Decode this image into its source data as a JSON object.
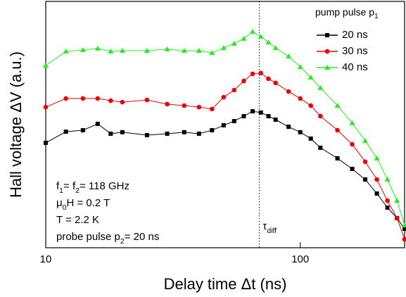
{
  "chart_data": {
    "type": "line",
    "xlabel": "Delay time Δt (ns)",
    "ylabel": "Hall voltage ΔV (a.u.)",
    "xscale": "log",
    "xlim": [
      10,
      257
    ],
    "xticks": [
      10,
      100
    ],
    "ylim": [
      0,
      10
    ],
    "legend": "upper right",
    "legend_title": [
      {
        "text": "pump pulse p"
      },
      {
        "sub": "1"
      }
    ],
    "x": [
      10,
      12,
      14,
      16,
      18,
      20,
      25,
      30,
      35,
      40,
      45,
      50,
      55,
      60,
      65,
      70,
      75,
      80,
      90,
      100,
      110,
      120,
      140,
      160,
      180,
      200,
      220,
      240,
      257
    ],
    "series": [
      {
        "name": "20 ns",
        "color": "#000000",
        "marker": "square",
        "values": [
          4.26,
          4.71,
          4.77,
          5.03,
          4.63,
          4.69,
          4.57,
          4.63,
          4.69,
          4.63,
          4.77,
          4.97,
          5.14,
          5.34,
          5.54,
          5.49,
          5.34,
          5.2,
          4.91,
          4.69,
          4.43,
          4.06,
          3.63,
          3.2,
          2.77,
          2.2,
          1.63,
          1.2,
          0.77
        ]
      },
      {
        "name": "30 ns",
        "color": "#ee0000",
        "marker": "circle",
        "values": [
          5.71,
          6.06,
          6.06,
          6.06,
          5.97,
          5.91,
          6.0,
          5.83,
          5.77,
          5.71,
          5.63,
          6.11,
          6.4,
          6.77,
          7.06,
          7.09,
          6.86,
          6.69,
          6.34,
          6.06,
          5.77,
          5.34,
          4.77,
          4.2,
          3.49,
          2.77,
          1.91,
          1.2,
          0.34
        ]
      },
      {
        "name": "40 ns",
        "color": "#22ee22",
        "marker": "triangle",
        "values": [
          7.4,
          7.97,
          8.03,
          8.09,
          7.97,
          8.0,
          8.0,
          8.06,
          8.0,
          8.0,
          7.91,
          8.11,
          8.29,
          8.49,
          8.77,
          8.57,
          8.34,
          8.11,
          7.77,
          7.34,
          6.91,
          6.49,
          5.77,
          5.06,
          4.34,
          3.63,
          2.77,
          1.91,
          0.91
        ]
      }
    ],
    "vline": {
      "x": 69,
      "label": [
        {
          "text": "τ"
        },
        {
          "sub": "diff"
        }
      ]
    },
    "annotations": [
      [
        {
          "text": "f"
        },
        {
          "sub": "1"
        },
        {
          "text": "= f"
        },
        {
          "sub": "2"
        },
        {
          "text": "= 118 GHz"
        }
      ],
      [
        {
          "text": "μ"
        },
        {
          "sub": "0"
        },
        {
          "text": "H = 0.2 T"
        }
      ],
      [
        {
          "text": "T = 2.2 K"
        }
      ],
      [
        {
          "text": "probe pulse p"
        },
        {
          "sub": "2"
        },
        {
          "text": "= 20 ns"
        }
      ]
    ]
  }
}
